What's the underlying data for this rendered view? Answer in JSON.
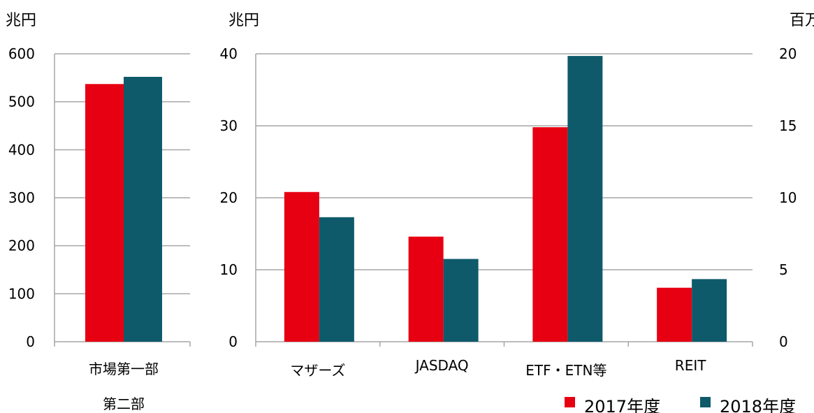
{
  "chart_data": [
    {
      "type": "bar",
      "ylabel": "兆円",
      "ylim": [
        0,
        600
      ],
      "yticks": [
        "0",
        "100",
        "200",
        "300",
        "400",
        "500",
        "600"
      ],
      "categories": [
        "市場第一部"
      ],
      "categories_extra_line": "第二部",
      "series": [
        {
          "name": "2017年度",
          "values": [
            537
          ]
        },
        {
          "name": "2018年度",
          "values": [
            552
          ]
        }
      ]
    },
    {
      "type": "bar",
      "ylabel": "兆円",
      "ylim": [
        0,
        40
      ],
      "yticks": [
        "0",
        "10",
        "20",
        "30",
        "40"
      ],
      "categories": [
        "マザーズ",
        "JASDAQ",
        "ETF・ETN等",
        "REIT"
      ],
      "series": [
        {
          "name": "2017年度",
          "values": [
            20.8,
            14.6,
            29.8,
            7.5
          ]
        },
        {
          "name": "2018年度",
          "values": [
            17.3,
            11.5,
            39.7,
            8.7
          ]
        }
      ],
      "right_axis": {
        "label": "百万",
        "ylim": [
          0,
          20
        ],
        "yticks": [
          "0",
          "5",
          "10",
          "15",
          "20"
        ]
      }
    }
  ],
  "legend": {
    "placement": "bottom-right",
    "items": [
      {
        "label": "2017年度",
        "color": "#e60012"
      },
      {
        "label": "2018年度",
        "color": "#0e5a6b"
      }
    ]
  },
  "colors": {
    "s2017": "#e60012",
    "s2018": "#0e5a6b",
    "grid": "#a6a6a6"
  }
}
